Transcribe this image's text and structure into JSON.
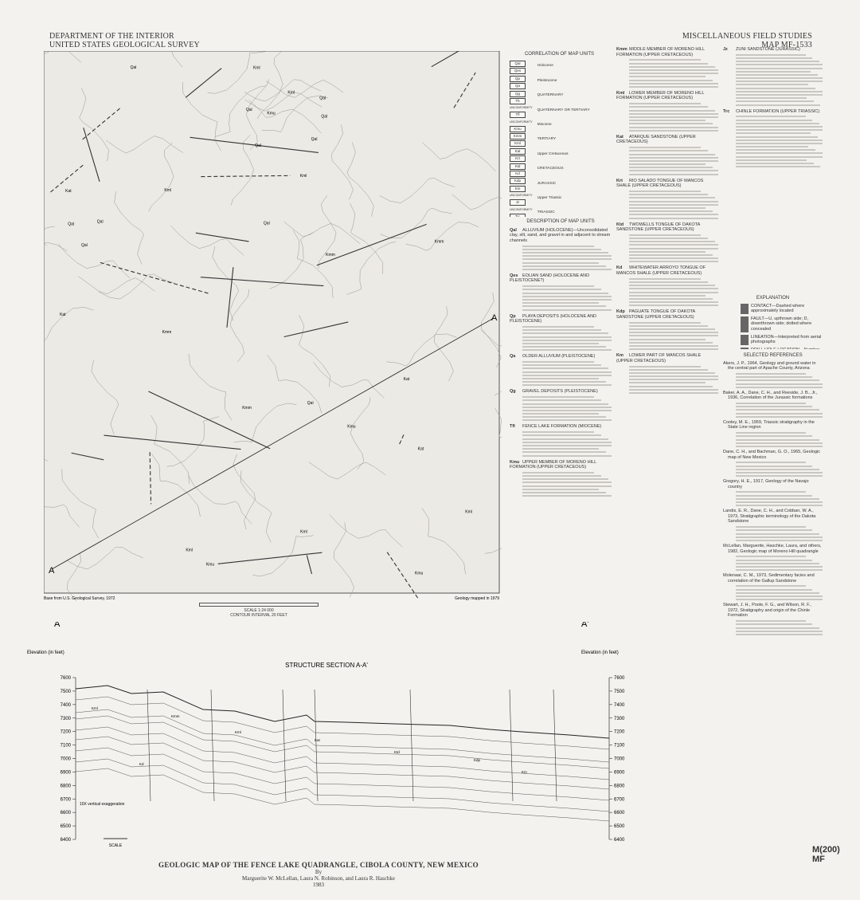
{
  "header": {
    "agency": [
      "DEPARTMENT OF THE INTERIOR",
      "UNITED STATES GEOLOGICAL SURVEY"
    ],
    "series": "MISCELLANEOUS FIELD STUDIES",
    "map_number": "MAP MF-1533"
  },
  "map": {
    "section_end_left": "A",
    "section_end_right": "A",
    "base_note": "Base from U.S. Geological Survey, 1972",
    "geology_note": "Geology mapped in 1979",
    "scale": "SCALE 1:24 000",
    "contour_note": "CONTOUR INTERVAL 20 FEET"
  },
  "correlation": {
    "title": "CORRELATION OF MAP UNITS",
    "units": [
      "Qal",
      "Qes",
      "Qp",
      "Qa",
      "Qg",
      "Tb",
      "Tfl",
      "Kmu",
      "Kmm",
      "Kml",
      "Kat",
      "Krt",
      "Ktd",
      "Kd",
      "Kdp",
      "Km",
      "Jz",
      "Trc"
    ],
    "labels": [
      "Holocene",
      "Pleistocene",
      "QUATERNARY",
      "QUATERNARY OR TERTIARY",
      "Miocene",
      "TERTIARY",
      "Upper Cretaceous",
      "CRETACEOUS",
      "JURASSIC",
      "Upper Triassic",
      "TRIASSIC"
    ],
    "unconformity": "UNCONFORMITY"
  },
  "description": {
    "title": "DESCRIPTION OF MAP UNITS",
    "entries": [
      {
        "code": "Qal",
        "name": "ALLUVIUM (HOLOCENE)—Unconsolidated clay, silt, sand, and gravel in and adjacent to stream channels"
      },
      {
        "code": "Qes",
        "name": "EOLIAN SAND (HOLOCENE AND PLEISTOCENE?)"
      },
      {
        "code": "Qp",
        "name": "PLAYA DEPOSITS (HOLOCENE AND PLEISTOCENE)"
      },
      {
        "code": "Qa",
        "name": "OLDER ALLUVIUM (PLEISTOCENE)"
      },
      {
        "code": "Qg",
        "name": "GRAVEL DEPOSITS (PLEISTOCENE)"
      },
      {
        "code": "Tfl",
        "name": "FENCE LAKE FORMATION (MIOCENE)"
      },
      {
        "code": "Kmu",
        "name": "UPPER MEMBER OF MORENO HILL FORMATION (UPPER CRETACEOUS)"
      },
      {
        "code": "Kmm",
        "name": "MIDDLE MEMBER OF MORENO HILL FORMATION (UPPER CRETACEOUS)"
      },
      {
        "code": "Kml",
        "name": "LOWER MEMBER OF MORENO HILL FORMATION (UPPER CRETACEOUS)"
      },
      {
        "code": "Kat",
        "name": "ATARQUE SANDSTONE (UPPER CRETACEOUS)"
      },
      {
        "code": "Krt",
        "name": "RIO SALADO TONGUE OF MANCOS SHALE (UPPER CRETACEOUS)"
      },
      {
        "code": "Ktd",
        "name": "TWOWELLS TONGUE OF DAKOTA SANDSTONE (UPPER CRETACEOUS)"
      },
      {
        "code": "Kd",
        "name": "WHITEWATER ARROYO TONGUE OF MANCOS SHALE (UPPER CRETACEOUS)"
      },
      {
        "code": "Kdp",
        "name": "PAGUATE TONGUE OF DAKOTA SANDSTONE (UPPER CRETACEOUS)"
      },
      {
        "code": "Km",
        "name": "LOWER PART OF MANCOS SHALE (UPPER CRETACEOUS)"
      },
      {
        "code": "Jz",
        "name": "ZUNI SANDSTONE (JURASSIC)"
      },
      {
        "code": "Trc",
        "name": "CHINLE FORMATION (UPPER TRIASSIC)"
      }
    ]
  },
  "explanation": {
    "title": "EXPLANATION",
    "items": [
      "CONTACT—Dashed where approximately located",
      "FAULT—U, upthrown side; D, downthrown side; dotted where concealed",
      "LINEATION—Interpreted from aerial photographs",
      "DRILL HOLE LOCATION—Number identifies drill hole"
    ]
  },
  "references": {
    "title": "SELECTED REFERENCES",
    "items": [
      "Akers, J. P., 1964, Geology and ground water in the central part of Apache County, Arizona",
      "Baker, A. A., Dane, C. H., and Reeside, J. B., Jr., 1936, Correlation of the Jurassic formations",
      "Cooley, M. E., 1959, Triassic stratigraphy in the State Line region",
      "Dane, C. H., and Bachman, G. O., 1965, Geologic map of New Mexico",
      "Gregory, H. E., 1917, Geology of the Navajo country",
      "Landis, E. R., Dane, C. H., and Cobban, W. A., 1973, Stratigraphic terminology of the Dakota Sandstone",
      "McLellan, Marguerite, Haschke, Laura, and others, 1982, Geologic map of Moreno Hill quadrangle",
      "Molenaar, C. M., 1973, Sedimentary facies and correlation of the Gallup Sandstone",
      "Stewart, J. H., Poole, F. G., and Wilson, R. F., 1972, Stratigraphy and origin of the Chinle Formation"
    ]
  },
  "section": {
    "title": "STRUCTURE SECTION A-A'",
    "left_end": "A",
    "right_end": "A'",
    "axis_label": "Elevation (in feet)",
    "ylim": [
      6400,
      7600
    ],
    "yticks": [
      6400,
      6500,
      6600,
      6700,
      6800,
      6900,
      7000,
      7100,
      7200,
      7300,
      7400,
      7500,
      7600
    ],
    "exaggeration": "10X vertical exaggeration",
    "scale_label": "SCALE"
  },
  "title_block": {
    "title": "GEOLOGIC MAP OF THE FENCE LAKE QUADRANGLE, CIBOLA COUNTY, NEW MEXICO",
    "by": "By",
    "authors": "Marguerite W. McLellan, Laura N. Robinson, and Laura R. Haschke",
    "year": "1983"
  },
  "stamp": [
    "M(200)",
    "MF"
  ]
}
